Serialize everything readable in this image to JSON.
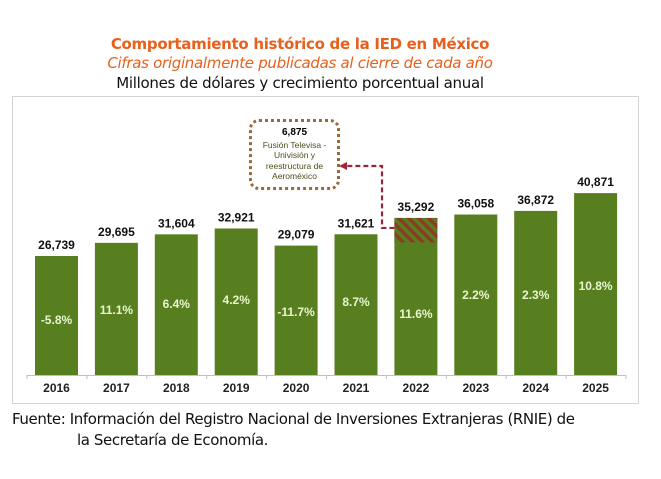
{
  "header": {
    "title": "Comportamiento histórico de la IED en México",
    "subtitle": "Cifras originalmente publicadas al cierre de cada año",
    "units": "Millones de dólares y crecimiento porcentual anual"
  },
  "annotation": {
    "value": "6,875",
    "lines": [
      "Fusión Televisa -",
      "Univisión y",
      "reestructura de",
      "Aeroméxico"
    ],
    "year": "2022",
    "amount": 6875
  },
  "source": {
    "line1": "Fuente: Información del Registro Nacional de Inversiones Extranjeras (RNIE) de",
    "line2": "la Secretaría de Economía."
  },
  "colors": {
    "bar": "#587f1f",
    "hatch": "#8d3b26",
    "pct_text": "#e9f5d0",
    "title": "#e8601c",
    "connector": "#a0253a"
  },
  "chart_data": {
    "type": "bar",
    "title": "Comportamiento histórico de la IED en México",
    "subtitle": "Cifras originalmente publicadas al cierre de cada año",
    "ylabel": "Millones de dólares",
    "xlabel": "",
    "ylim": [
      0,
      45000
    ],
    "grid": false,
    "categories": [
      "2016",
      "2017",
      "2018",
      "2019",
      "2020",
      "2021",
      "2022",
      "2023",
      "2024",
      "2025"
    ],
    "values": [
      26739,
      29695,
      31604,
      32921,
      29079,
      31621,
      35292,
      36058,
      36872,
      40871
    ],
    "value_labels": [
      "26,739",
      "29,695",
      "31,604",
      "32,921",
      "29,079",
      "31,621",
      "35,292",
      "36,058",
      "36,872",
      "40,871"
    ],
    "growth_labels": [
      "-5.8%",
      "11.1%",
      "6.4%",
      "4.2%",
      "-11.7%",
      "8.7%",
      "11.6%",
      "2.2%",
      "2.3%",
      "10.8%"
    ],
    "growth": [
      -5.8,
      11.1,
      6.4,
      4.2,
      -11.7,
      8.7,
      11.6,
      2.2,
      2.3,
      10.8
    ],
    "highlight": {
      "category": "2022",
      "portion": 6875,
      "label": "6,875"
    }
  }
}
